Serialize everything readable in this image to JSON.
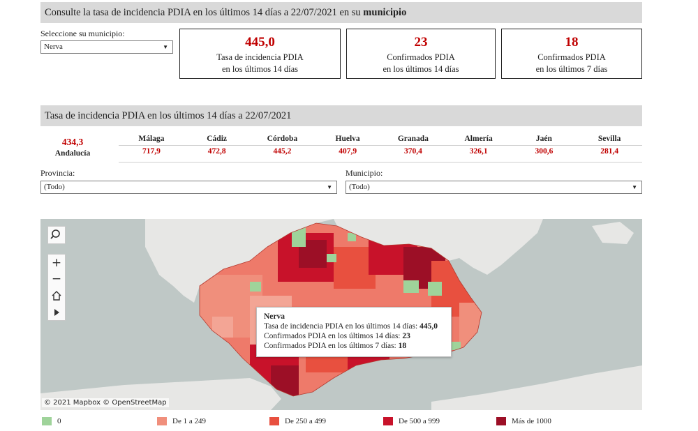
{
  "header": {
    "title_prefix": "Consulte la tasa de incidencia PDIA en los últimos 14 días a 22/07/2021 en su ",
    "title_bold": "municipio"
  },
  "municipio_selector": {
    "label": "Seleccione su municipio:",
    "value": "Nerva"
  },
  "kpis": [
    {
      "value": "445,0",
      "line1": "Tasa de incidencia PDIA",
      "line2": "en los últimos 14 días"
    },
    {
      "value": "23",
      "line1": "Confirmados PDIA",
      "line2": "en los últimos 14 días"
    },
    {
      "value": "18",
      "line1": "Confirmados PDIA",
      "line2": "en los últimos 7 días"
    }
  ],
  "section2": {
    "title": "Tasa de incidencia PDIA en los últimos 14 días a 22/07/2021"
  },
  "andalucia": {
    "value": "434,3",
    "label": "Andalucía"
  },
  "provinces": [
    {
      "name": "Málaga",
      "value": "717,9"
    },
    {
      "name": "Cádiz",
      "value": "472,8"
    },
    {
      "name": "Córdoba",
      "value": "445,2"
    },
    {
      "name": "Huelva",
      "value": "407,9"
    },
    {
      "name": "Granada",
      "value": "370,4"
    },
    {
      "name": "Almería",
      "value": "326,1"
    },
    {
      "name": "Jaén",
      "value": "300,6"
    },
    {
      "name": "Sevilla",
      "value": "281,4"
    }
  ],
  "filters": {
    "provincia_label": "Provincia:",
    "provincia_value": "(Todo)",
    "municipio_label": "Municipio:",
    "municipio_value": "(Todo)"
  },
  "map": {
    "tooltip": {
      "title": "Nerva",
      "row1_label": "Tasa de incidencia PDIA en los últimos 14 días: ",
      "row1_value": "445,0",
      "row2_label": "Confirmados PDIA en los últimos 14 días: ",
      "row2_value": "23",
      "row3_label": "Confirmados PDIA en los últimos 7 días: ",
      "row3_value": "18"
    },
    "attribution": "© 2021 Mapbox  © OpenStreetMap",
    "controls": [
      "search-icon",
      "zoom-in-icon",
      "zoom-out-icon",
      "home-icon",
      "play-icon"
    ]
  },
  "legend": [
    {
      "label": "0",
      "color": "#9fd39a"
    },
    {
      "label": "De 1 a 249",
      "color": "#f08f7c"
    },
    {
      "label": "De 250 a 499",
      "color": "#e8503f"
    },
    {
      "label": "De 500 a 999",
      "color": "#c8122a"
    },
    {
      "label": "Más de 1000",
      "color": "#9c0f26"
    }
  ]
}
